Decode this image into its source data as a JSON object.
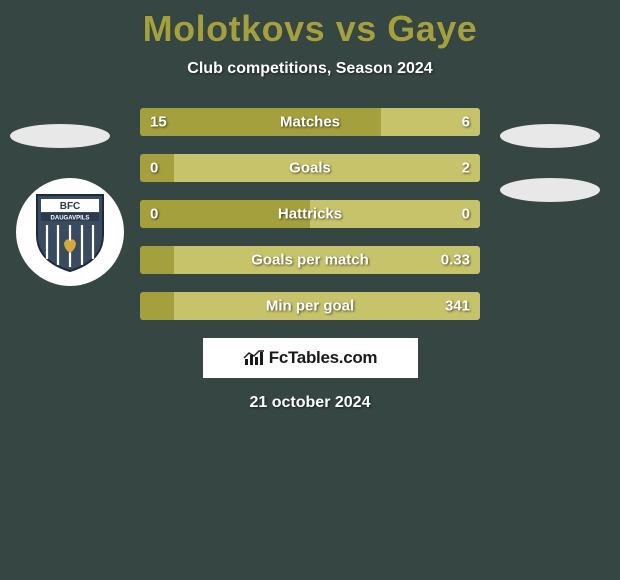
{
  "title": "Molotkovs vs Gaye",
  "subtitle": "Club competitions, Season 2024",
  "colors": {
    "left_bar": "#a4a03e",
    "right_bar": "#c7c36a",
    "background": "#364642",
    "title": "#a4a03e",
    "text": "#ffffff"
  },
  "bars": [
    {
      "label": "Matches",
      "left": "15",
      "right": "6",
      "left_pct": 71,
      "right_pct": 29
    },
    {
      "label": "Goals",
      "left": "0",
      "right": "2",
      "left_pct": 10,
      "right_pct": 90
    },
    {
      "label": "Hattricks",
      "left": "0",
      "right": "0",
      "left_pct": 50,
      "right_pct": 50
    },
    {
      "label": "Goals per match",
      "left": "",
      "right": "0.33",
      "left_pct": 10,
      "right_pct": 90
    },
    {
      "label": "Min per goal",
      "left": "",
      "right": "341",
      "left_pct": 10,
      "right_pct": 90
    }
  ],
  "brand": "FcTables.com",
  "date": "21 october 2024",
  "badge": {
    "line1": "BFC",
    "line2": "DAUGAVPILS"
  }
}
